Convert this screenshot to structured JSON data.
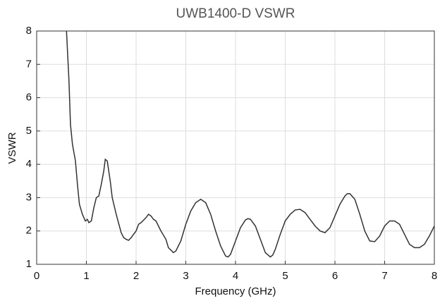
{
  "chart_data": {
    "type": "line",
    "title": "UWB1400-D VSWR",
    "xlabel": "Frequency (GHz)",
    "ylabel": "VSWR",
    "xlim": [
      0,
      8
    ],
    "xticks": [
      0,
      1,
      2,
      3,
      4,
      5,
      6,
      7,
      8
    ],
    "ylim": [
      1,
      8
    ],
    "yticks": [
      1,
      2,
      3,
      4,
      5,
      6,
      7,
      8
    ],
    "grid": true,
    "x": [
      0.6,
      0.65,
      0.68,
      0.72,
      0.78,
      0.82,
      0.86,
      0.92,
      0.98,
      1.02,
      1.05,
      1.1,
      1.15,
      1.2,
      1.25,
      1.3,
      1.35,
      1.38,
      1.42,
      1.48,
      1.52,
      1.6,
      1.7,
      1.75,
      1.8,
      1.85,
      1.9,
      2.0,
      2.05,
      2.1,
      2.2,
      2.25,
      2.3,
      2.35,
      2.4,
      2.5,
      2.6,
      2.65,
      2.75,
      2.8,
      2.9,
      3.0,
      3.1,
      3.2,
      3.3,
      3.4,
      3.5,
      3.6,
      3.7,
      3.8,
      3.85,
      3.9,
      4.0,
      4.1,
      4.2,
      4.25,
      4.3,
      4.4,
      4.5,
      4.6,
      4.7,
      4.75,
      4.8,
      4.9,
      5.0,
      5.1,
      5.2,
      5.3,
      5.4,
      5.5,
      5.6,
      5.7,
      5.8,
      5.9,
      6.0,
      6.1,
      6.2,
      6.25,
      6.3,
      6.4,
      6.5,
      6.6,
      6.7,
      6.8,
      6.9,
      7.0,
      7.1,
      7.2,
      7.3,
      7.4,
      7.5,
      7.6,
      7.7,
      7.8,
      7.9,
      8.0
    ],
    "series": [
      {
        "color": "#333333",
        "values": [
          8,
          6.5,
          5.2,
          4.6,
          4.1,
          3.4,
          2.8,
          2.5,
          2.3,
          2.35,
          2.25,
          2.3,
          2.7,
          3.0,
          3.05,
          3.4,
          3.8,
          4.15,
          4.1,
          3.5,
          3.0,
          2.5,
          1.95,
          1.8,
          1.75,
          1.72,
          1.8,
          2.0,
          2.2,
          2.25,
          2.4,
          2.5,
          2.45,
          2.35,
          2.3,
          2.0,
          1.75,
          1.5,
          1.35,
          1.4,
          1.7,
          2.2,
          2.6,
          2.85,
          2.95,
          2.85,
          2.5,
          2.0,
          1.55,
          1.25,
          1.22,
          1.3,
          1.7,
          2.1,
          2.33,
          2.37,
          2.35,
          2.15,
          1.75,
          1.35,
          1.22,
          1.28,
          1.45,
          1.9,
          2.3,
          2.5,
          2.63,
          2.65,
          2.55,
          2.35,
          2.15,
          2.0,
          1.95,
          2.1,
          2.45,
          2.8,
          3.05,
          3.12,
          3.12,
          2.95,
          2.5,
          2.0,
          1.7,
          1.68,
          1.85,
          2.15,
          2.3,
          2.3,
          2.2,
          1.9,
          1.6,
          1.5,
          1.5,
          1.6,
          1.85,
          2.15
        ]
      }
    ]
  }
}
